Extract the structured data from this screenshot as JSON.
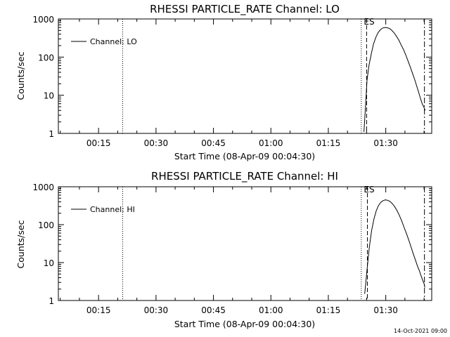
{
  "footer": {
    "timestamp": "14-Oct-2021 09:00"
  },
  "chart_data": [
    {
      "type": "line",
      "title": "RHESSI PARTICLE_RATE Channel: LO",
      "xlabel": "Start Time (08-Apr-09 00:04:30)",
      "ylabel": "Counts/sec",
      "yscale": "log",
      "ylim": [
        1,
        1000
      ],
      "xlim_minutes": [
        4.5,
        102
      ],
      "x_ticks": [
        {
          "minute": 15,
          "label": "00:15"
        },
        {
          "minute": 30,
          "label": "00:30"
        },
        {
          "minute": 45,
          "label": "00:45"
        },
        {
          "minute": 60,
          "label": "01:00"
        },
        {
          "minute": 75,
          "label": "01:15"
        },
        {
          "minute": 90,
          "label": "01:30"
        }
      ],
      "y_ticks": [
        {
          "value": 1,
          "label": "1"
        },
        {
          "value": 10,
          "label": "10"
        },
        {
          "value": 100,
          "label": "100"
        },
        {
          "value": 1000,
          "label": "1000"
        }
      ],
      "legend": {
        "entries": [
          "Channel: LO"
        ],
        "position": "top-left"
      },
      "series": [
        {
          "name": "Channel: LO",
          "x_minutes": [
            84.3,
            84.7,
            85.1,
            85.6,
            86.2,
            86.8,
            87.4,
            88.0,
            88.6,
            89.2,
            89.8,
            90.4,
            91.0,
            91.6,
            92.2,
            92.8,
            93.4,
            94.0,
            94.6,
            95.2,
            95.8,
            96.4,
            97.0,
            97.6,
            98.2,
            98.7,
            99.1,
            99.5,
            99.9,
            100.3
          ],
          "values": [
            1.1,
            5,
            25,
            60,
            120,
            220,
            330,
            440,
            520,
            580,
            600,
            590,
            560,
            500,
            430,
            350,
            280,
            210,
            160,
            115,
            80,
            55,
            37,
            25,
            16,
            11,
            8,
            6,
            5,
            4
          ]
        }
      ],
      "vlines": [
        {
          "minute": 21.3,
          "style": "dotted"
        },
        {
          "minute": 83.6,
          "style": "dotted"
        },
        {
          "minute": 85.0,
          "style": "dashed"
        },
        {
          "minute": 100.1,
          "style": "dashdot"
        }
      ],
      "annotations": [
        {
          "text": "E",
          "minute": 83.9
        },
        {
          "text": "S",
          "minute": 85.3
        }
      ]
    },
    {
      "type": "line",
      "title": "RHESSI PARTICLE_RATE Channel: HI",
      "xlabel": "Start Time (08-Apr-09 00:04:30)",
      "ylabel": "Counts/sec",
      "yscale": "log",
      "ylim": [
        1,
        1000
      ],
      "xlim_minutes": [
        4.5,
        102
      ],
      "x_ticks": [
        {
          "minute": 15,
          "label": "00:15"
        },
        {
          "minute": 30,
          "label": "00:30"
        },
        {
          "minute": 45,
          "label": "00:45"
        },
        {
          "minute": 60,
          "label": "01:00"
        },
        {
          "minute": 75,
          "label": "01:15"
        },
        {
          "minute": 90,
          "label": "01:30"
        }
      ],
      "y_ticks": [
        {
          "value": 1,
          "label": "1"
        },
        {
          "value": 10,
          "label": "10"
        },
        {
          "value": 100,
          "label": "100"
        },
        {
          "value": 1000,
          "label": "1000"
        }
      ],
      "legend": {
        "entries": [
          "Channel: HI"
        ],
        "position": "top-left"
      },
      "series": [
        {
          "name": "Channel: HI",
          "x_minutes": [
            84.5,
            84.8,
            85.2,
            85.7,
            86.3,
            86.9,
            87.5,
            88.1,
            88.7,
            89.3,
            89.9,
            90.5,
            91.1,
            91.7,
            92.3,
            92.9,
            93.5,
            94.1,
            94.7,
            95.3,
            95.9,
            96.5,
            97.1,
            97.7,
            98.3,
            98.8,
            99.2,
            99.6,
            100.0,
            100.2
          ],
          "values": [
            1.5,
            3,
            8,
            25,
            70,
            140,
            230,
            320,
            390,
            430,
            450,
            440,
            410,
            360,
            300,
            240,
            180,
            130,
            90,
            62,
            42,
            28,
            18,
            12,
            8,
            6,
            4.5,
            3.5,
            2.8,
            2.2
          ]
        }
      ],
      "vlines": [
        {
          "minute": 21.3,
          "style": "dotted"
        },
        {
          "minute": 83.6,
          "style": "dotted"
        },
        {
          "minute": 85.2,
          "style": "dashed"
        },
        {
          "minute": 100.1,
          "style": "dashdot"
        }
      ],
      "annotations": [
        {
          "text": "E",
          "minute": 83.9
        },
        {
          "text": "S",
          "minute": 85.3
        }
      ]
    }
  ]
}
